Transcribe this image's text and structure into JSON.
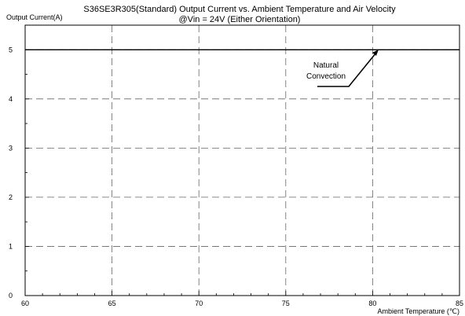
{
  "chart_data": {
    "type": "line",
    "title": "S36SE3R305(Standard)  Output Current vs. Ambient Temperature and Air Velocity",
    "subtitle": "@Vin = 24V (Either Orientation)",
    "ylabel": "Output Current(A)",
    "xlabel": "Ambient Temperature (℃)",
    "xlim": [
      60,
      85
    ],
    "ylim": [
      0,
      5.5
    ],
    "x_ticks": [
      60,
      65,
      70,
      75,
      80,
      85
    ],
    "y_ticks": [
      0,
      1,
      2,
      3,
      4,
      5
    ],
    "grid": true,
    "series": [
      {
        "name": "Natural Convection",
        "x": [
          60,
          85
        ],
        "y": [
          5,
          5
        ]
      }
    ],
    "annotations": [
      {
        "lines": [
          "Natural",
          "Convection"
        ],
        "series": "Natural Convection",
        "points_to": [
          80.4,
          5
        ]
      }
    ],
    "colors": {
      "series": "#000000",
      "grid": "#666666",
      "frame": "#000000"
    }
  }
}
